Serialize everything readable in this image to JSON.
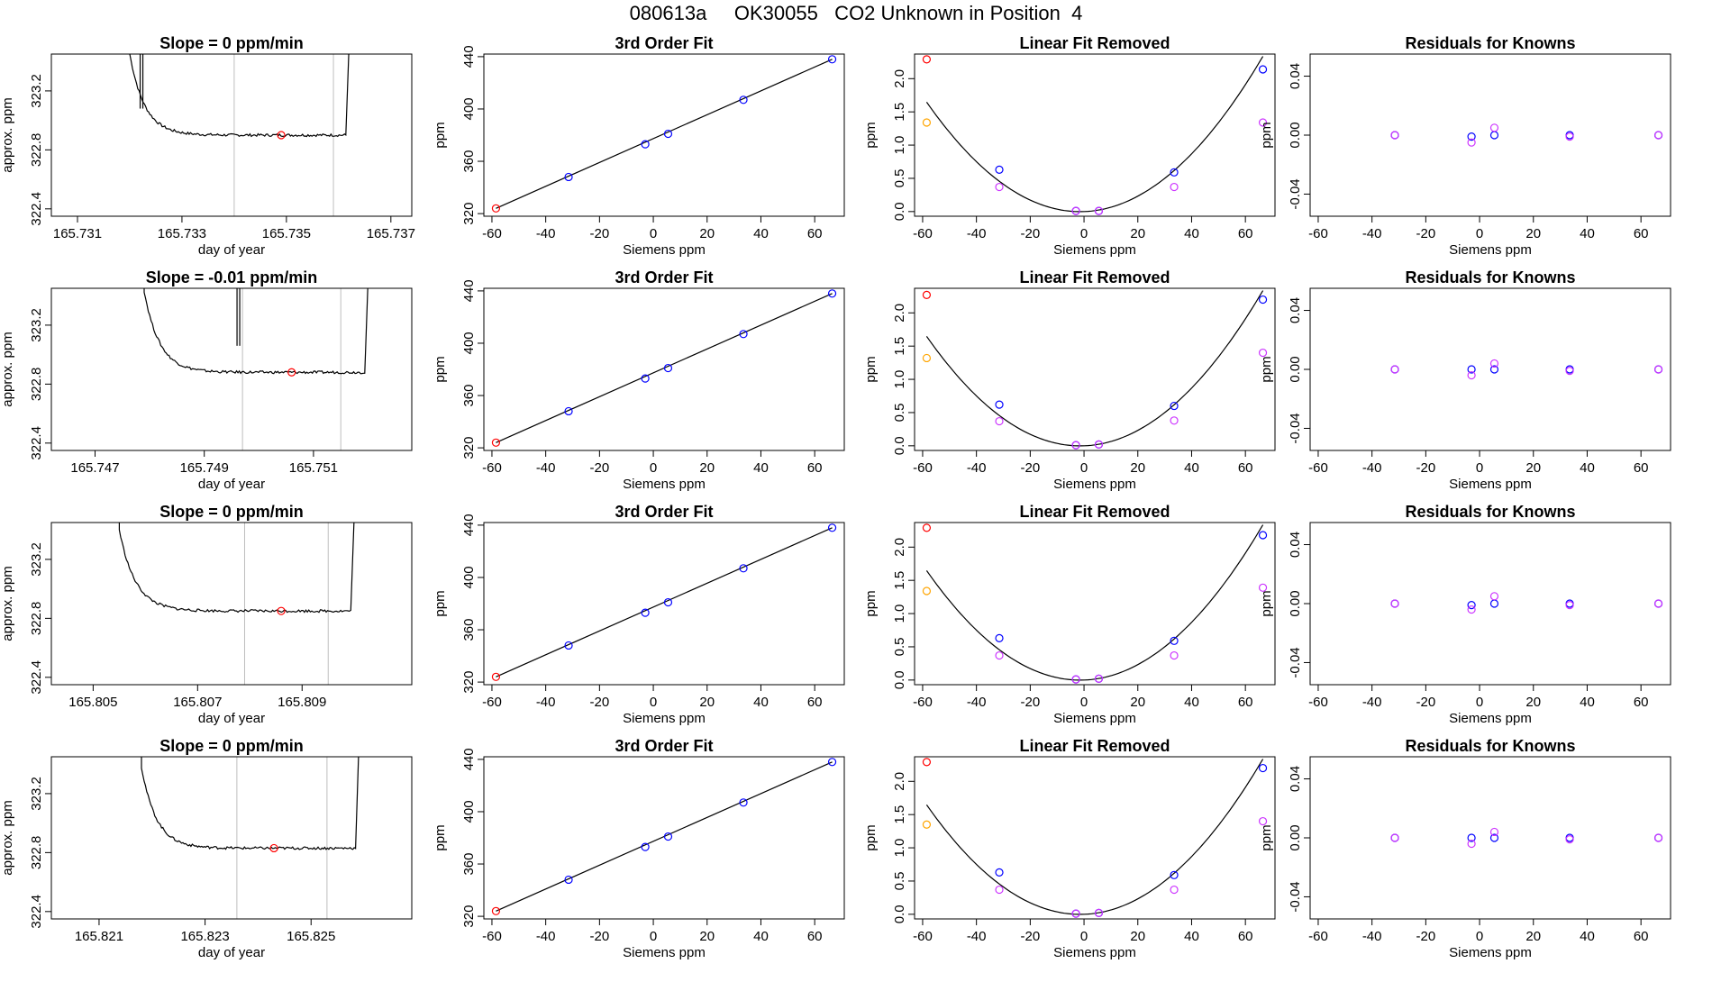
{
  "title": "080613a     OK30055   CO2 Unknown in Position  4",
  "colors": {
    "line": "#000000",
    "marker_red": "#ff0000",
    "marker_blue": "#0000ff",
    "marker_orange": "#ffa500",
    "marker_violet": "#cc33ff",
    "guide_line": "#bebebe"
  },
  "chart_data": [
    {
      "type": "line",
      "row": 0,
      "col": 0,
      "title": "Slope =  0  ppm/min",
      "xlabel": "day of year",
      "ylabel": "approx. ppm",
      "xlim": [
        165.7305,
        165.7374
      ],
      "ylim": [
        322.35,
        323.45
      ],
      "xticks": [
        165.731,
        165.733,
        165.735,
        165.737
      ],
      "yticks": [
        322.4,
        322.8,
        323.2
      ],
      "x_start": 165.732,
      "x_end": 165.7362,
      "spike_x": 165.7322,
      "plateau": 322.9,
      "vlines": [
        165.734,
        165.7359
      ],
      "marker": {
        "x": 165.7349,
        "y": 322.9
      }
    },
    {
      "type": "line",
      "row": 1,
      "col": 0,
      "title": "Slope =  -0.01  ppm/min",
      "xlabel": "day of year",
      "ylabel": "approx. ppm",
      "xlim": [
        165.7462,
        165.7528
      ],
      "ylim": [
        322.35,
        323.45
      ],
      "xticks": [
        165.747,
        165.749,
        165.751
      ],
      "yticks": [
        322.4,
        322.8,
        323.2
      ],
      "x_start": 165.7479,
      "x_end": 165.752,
      "spike_x": 165.7496,
      "plateau": 322.88,
      "vlines": [
        165.7497,
        165.7515
      ],
      "marker": {
        "x": 165.7506,
        "y": 322.88
      }
    },
    {
      "type": "line",
      "row": 2,
      "col": 0,
      "title": "Slope =  0  ppm/min",
      "xlabel": "day of year",
      "ylabel": "approx. ppm",
      "xlim": [
        165.8042,
        165.8111
      ],
      "ylim": [
        322.35,
        323.45
      ],
      "xticks": [
        165.805,
        165.807,
        165.809
      ],
      "yticks": [
        322.4,
        322.8,
        323.2
      ],
      "x_start": 165.8055,
      "x_end": 165.81,
      "plateau": 322.85,
      "vlines": [
        165.8079,
        165.8095
      ],
      "marker": {
        "x": 165.8086,
        "y": 322.85
      }
    },
    {
      "type": "line",
      "row": 3,
      "col": 0,
      "title": "Slope =  0  ppm/min",
      "xlabel": "day of year",
      "ylabel": "approx. ppm",
      "xlim": [
        165.8201,
        165.8269
      ],
      "ylim": [
        322.35,
        323.45
      ],
      "xticks": [
        165.821,
        165.823,
        165.825
      ],
      "yticks": [
        322.4,
        322.8,
        323.2
      ],
      "x_start": 165.8218,
      "x_end": 165.8259,
      "plateau": 322.83,
      "vlines": [
        165.8236,
        165.8253
      ],
      "marker": {
        "x": 165.8243,
        "y": 322.83
      }
    },
    {
      "type": "scatter",
      "row": 0,
      "col": 1,
      "title": "3rd Order Fit",
      "xlabel": "Siemens ppm",
      "ylabel": "ppm",
      "xlim": [
        -63,
        71
      ],
      "ylim": [
        318,
        442
      ],
      "xticks": [
        -60,
        -40,
        -20,
        0,
        20,
        40,
        60
      ],
      "yticks": [
        320,
        360,
        400,
        440
      ],
      "fit_line": [
        [
          -58.5,
          324
        ],
        [
          66.5,
          438
        ]
      ],
      "points": [
        {
          "x": -58.5,
          "y": 324,
          "color": "red"
        },
        {
          "x": -31.5,
          "y": 348,
          "color": "blue"
        },
        {
          "x": -3,
          "y": 373,
          "color": "blue"
        },
        {
          "x": 5.5,
          "y": 381,
          "color": "blue"
        },
        {
          "x": 33.5,
          "y": 407,
          "color": "blue"
        },
        {
          "x": 66.5,
          "y": 438,
          "color": "blue"
        }
      ]
    },
    {
      "type": "scatter",
      "row": 1,
      "col": 1,
      "title": "3rd Order Fit",
      "xlabel": "Siemens ppm",
      "ylabel": "ppm",
      "xlim": [
        -63,
        71
      ],
      "ylim": [
        318,
        442
      ],
      "xticks": [
        -60,
        -40,
        -20,
        0,
        20,
        40,
        60
      ],
      "yticks": [
        320,
        360,
        400,
        440
      ],
      "fit_line": [
        [
          -58.5,
          324
        ],
        [
          66.5,
          438
        ]
      ],
      "points": [
        {
          "x": -58.5,
          "y": 324,
          "color": "red"
        },
        {
          "x": -31.5,
          "y": 348,
          "color": "blue"
        },
        {
          "x": -3,
          "y": 373,
          "color": "blue"
        },
        {
          "x": 5.5,
          "y": 381,
          "color": "blue"
        },
        {
          "x": 33.5,
          "y": 407,
          "color": "blue"
        },
        {
          "x": 66.5,
          "y": 438,
          "color": "blue"
        }
      ]
    },
    {
      "type": "scatter",
      "row": 2,
      "col": 1,
      "title": "3rd Order Fit",
      "xlabel": "Siemens ppm",
      "ylabel": "ppm",
      "xlim": [
        -63,
        71
      ],
      "ylim": [
        318,
        442
      ],
      "xticks": [
        -60,
        -40,
        -20,
        0,
        20,
        40,
        60
      ],
      "yticks": [
        320,
        360,
        400,
        440
      ],
      "fit_line": [
        [
          -58.5,
          324
        ],
        [
          66.5,
          438
        ]
      ],
      "points": [
        {
          "x": -58.5,
          "y": 324,
          "color": "red"
        },
        {
          "x": -31.5,
          "y": 348,
          "color": "blue"
        },
        {
          "x": -3,
          "y": 373,
          "color": "blue"
        },
        {
          "x": 5.5,
          "y": 381,
          "color": "blue"
        },
        {
          "x": 33.5,
          "y": 407,
          "color": "blue"
        },
        {
          "x": 66.5,
          "y": 438,
          "color": "blue"
        }
      ]
    },
    {
      "type": "scatter",
      "row": 3,
      "col": 1,
      "title": "3rd Order Fit",
      "xlabel": "Siemens ppm",
      "ylabel": "ppm",
      "xlim": [
        -63,
        71
      ],
      "ylim": [
        318,
        442
      ],
      "xticks": [
        -60,
        -40,
        -20,
        0,
        20,
        40,
        60
      ],
      "yticks": [
        320,
        360,
        400,
        440
      ],
      "fit_line": [
        [
          -58.5,
          324
        ],
        [
          66.5,
          438
        ]
      ],
      "points": [
        {
          "x": -58.5,
          "y": 324,
          "color": "red"
        },
        {
          "x": -31.5,
          "y": 348,
          "color": "blue"
        },
        {
          "x": -3,
          "y": 373,
          "color": "blue"
        },
        {
          "x": 5.5,
          "y": 381,
          "color": "blue"
        },
        {
          "x": 33.5,
          "y": 407,
          "color": "blue"
        },
        {
          "x": 66.5,
          "y": 438,
          "color": "blue"
        }
      ]
    },
    {
      "type": "scatter",
      "row": 0,
      "col": 2,
      "title": "Linear Fit Removed",
      "xlabel": "Siemens ppm",
      "ylabel": "ppm",
      "xlim": [
        -63,
        71
      ],
      "ylim": [
        -0.07,
        2.37
      ],
      "xticks": [
        -60,
        -40,
        -20,
        0,
        20,
        40,
        60
      ],
      "yticks": [
        0.0,
        0.5,
        1.0,
        1.5,
        2.0
      ],
      "curve": {
        "x_min": -58.5,
        "x_max": 66.5,
        "a": 0.000506,
        "b": 0.00147,
        "c": 0.0
      },
      "points": [
        {
          "x": -58.5,
          "y": 2.29,
          "color": "red"
        },
        {
          "x": -58.5,
          "y": 1.34,
          "color": "orange"
        },
        {
          "x": -31.5,
          "y": 0.63,
          "color": "blue"
        },
        {
          "x": -31.5,
          "y": 0.37,
          "color": "violet"
        },
        {
          "x": -3,
          "y": 0.01,
          "color": "blue"
        },
        {
          "x": -3,
          "y": 0.01,
          "color": "violet"
        },
        {
          "x": 5.5,
          "y": 0.01,
          "color": "blue"
        },
        {
          "x": 5.5,
          "y": 0.01,
          "color": "violet"
        },
        {
          "x": 33.5,
          "y": 0.59,
          "color": "blue"
        },
        {
          "x": 33.5,
          "y": 0.37,
          "color": "violet"
        },
        {
          "x": 66.5,
          "y": 2.14,
          "color": "blue"
        },
        {
          "x": 66.5,
          "y": 1.34,
          "color": "violet"
        }
      ]
    },
    {
      "type": "scatter",
      "row": 1,
      "col": 2,
      "title": "Linear Fit Removed",
      "xlabel": "Siemens ppm",
      "ylabel": "ppm",
      "xlim": [
        -63,
        71
      ],
      "ylim": [
        -0.07,
        2.37
      ],
      "xticks": [
        -60,
        -40,
        -20,
        0,
        20,
        40,
        60
      ],
      "yticks": [
        0.0,
        0.5,
        1.0,
        1.5,
        2.0
      ],
      "curve": {
        "x_min": -58.5,
        "x_max": 66.5,
        "a": 0.000506,
        "b": 0.00147,
        "c": 0.0
      },
      "points": [
        {
          "x": -58.5,
          "y": 2.27,
          "color": "red"
        },
        {
          "x": -58.5,
          "y": 1.32,
          "color": "orange"
        },
        {
          "x": -31.5,
          "y": 0.62,
          "color": "blue"
        },
        {
          "x": -31.5,
          "y": 0.37,
          "color": "violet"
        },
        {
          "x": -3,
          "y": 0.01,
          "color": "blue"
        },
        {
          "x": -3,
          "y": 0.01,
          "color": "violet"
        },
        {
          "x": 5.5,
          "y": 0.02,
          "color": "blue"
        },
        {
          "x": 5.5,
          "y": 0.02,
          "color": "violet"
        },
        {
          "x": 33.5,
          "y": 0.6,
          "color": "blue"
        },
        {
          "x": 33.5,
          "y": 0.38,
          "color": "violet"
        },
        {
          "x": 66.5,
          "y": 2.2,
          "color": "blue"
        },
        {
          "x": 66.5,
          "y": 1.4,
          "color": "violet"
        }
      ]
    },
    {
      "type": "scatter",
      "row": 2,
      "col": 2,
      "title": "Linear Fit Removed",
      "xlabel": "Siemens ppm",
      "ylabel": "ppm",
      "xlim": [
        -63,
        71
      ],
      "ylim": [
        -0.07,
        2.37
      ],
      "xticks": [
        -60,
        -40,
        -20,
        0,
        20,
        40,
        60
      ],
      "yticks": [
        0.0,
        0.5,
        1.0,
        1.5,
        2.0
      ],
      "curve": {
        "x_min": -58.5,
        "x_max": 66.5,
        "a": 0.000506,
        "b": 0.00147,
        "c": 0.0
      },
      "points": [
        {
          "x": -58.5,
          "y": 2.29,
          "color": "red"
        },
        {
          "x": -58.5,
          "y": 1.34,
          "color": "orange"
        },
        {
          "x": -31.5,
          "y": 0.63,
          "color": "blue"
        },
        {
          "x": -31.5,
          "y": 0.37,
          "color": "violet"
        },
        {
          "x": -3,
          "y": 0.01,
          "color": "blue"
        },
        {
          "x": -3,
          "y": 0.01,
          "color": "violet"
        },
        {
          "x": 5.5,
          "y": 0.02,
          "color": "blue"
        },
        {
          "x": 5.5,
          "y": 0.02,
          "color": "violet"
        },
        {
          "x": 33.5,
          "y": 0.59,
          "color": "blue"
        },
        {
          "x": 33.5,
          "y": 0.37,
          "color": "violet"
        },
        {
          "x": 66.5,
          "y": 2.18,
          "color": "blue"
        },
        {
          "x": 66.5,
          "y": 1.39,
          "color": "violet"
        }
      ]
    },
    {
      "type": "scatter",
      "row": 3,
      "col": 2,
      "title": "Linear Fit Removed",
      "xlabel": "Siemens ppm",
      "ylabel": "ppm",
      "xlim": [
        -63,
        71
      ],
      "ylim": [
        -0.07,
        2.37
      ],
      "xticks": [
        -60,
        -40,
        -20,
        0,
        20,
        40,
        60
      ],
      "yticks": [
        0.0,
        0.5,
        1.0,
        1.5,
        2.0
      ],
      "curve": {
        "x_min": -58.5,
        "x_max": 66.5,
        "a": 0.000506,
        "b": 0.00147,
        "c": 0.0
      },
      "points": [
        {
          "x": -58.5,
          "y": 2.29,
          "color": "red"
        },
        {
          "x": -58.5,
          "y": 1.35,
          "color": "orange"
        },
        {
          "x": -31.5,
          "y": 0.63,
          "color": "blue"
        },
        {
          "x": -31.5,
          "y": 0.37,
          "color": "violet"
        },
        {
          "x": -3,
          "y": 0.01,
          "color": "blue"
        },
        {
          "x": -3,
          "y": 0.01,
          "color": "violet"
        },
        {
          "x": 5.5,
          "y": 0.02,
          "color": "blue"
        },
        {
          "x": 5.5,
          "y": 0.02,
          "color": "violet"
        },
        {
          "x": 33.5,
          "y": 0.59,
          "color": "blue"
        },
        {
          "x": 33.5,
          "y": 0.37,
          "color": "violet"
        },
        {
          "x": 66.5,
          "y": 2.2,
          "color": "blue"
        },
        {
          "x": 66.5,
          "y": 1.4,
          "color": "violet"
        }
      ]
    },
    {
      "type": "scatter",
      "row": 0,
      "col": 3,
      "title": "Residuals for Knowns",
      "xlabel": "Siemens ppm",
      "ylabel": "ppm",
      "xlim": [
        -63,
        71
      ],
      "ylim": [
        -0.055,
        0.055
      ],
      "xticks": [
        -60,
        -40,
        -20,
        0,
        20,
        40,
        60
      ],
      "yticks": [
        -0.04,
        0.0,
        0.04
      ],
      "points": [
        {
          "x": -31.5,
          "y": 0.0,
          "color": "blue"
        },
        {
          "x": -31.5,
          "y": 0.0,
          "color": "violet"
        },
        {
          "x": -3,
          "y": -0.001,
          "color": "blue"
        },
        {
          "x": -3,
          "y": -0.005,
          "color": "violet"
        },
        {
          "x": 5.5,
          "y": 0.0,
          "color": "blue"
        },
        {
          "x": 5.5,
          "y": 0.005,
          "color": "violet"
        },
        {
          "x": 33.5,
          "y": 0.0,
          "color": "blue"
        },
        {
          "x": 33.5,
          "y": -0.001,
          "color": "violet"
        },
        {
          "x": 66.5,
          "y": 0.0,
          "color": "blue"
        },
        {
          "x": 66.5,
          "y": 0.0,
          "color": "violet"
        }
      ]
    },
    {
      "type": "scatter",
      "row": 1,
      "col": 3,
      "title": "Residuals for Knowns",
      "xlabel": "Siemens ppm",
      "ylabel": "ppm",
      "xlim": [
        -63,
        71
      ],
      "ylim": [
        -0.055,
        0.055
      ],
      "xticks": [
        -60,
        -40,
        -20,
        0,
        20,
        40,
        60
      ],
      "yticks": [
        -0.04,
        0.0,
        0.04
      ],
      "points": [
        {
          "x": -31.5,
          "y": 0.0,
          "color": "blue"
        },
        {
          "x": -31.5,
          "y": 0.0,
          "color": "violet"
        },
        {
          "x": -3,
          "y": 0.0,
          "color": "blue"
        },
        {
          "x": -3,
          "y": -0.004,
          "color": "violet"
        },
        {
          "x": 5.5,
          "y": 0.0,
          "color": "blue"
        },
        {
          "x": 5.5,
          "y": 0.004,
          "color": "violet"
        },
        {
          "x": 33.5,
          "y": 0.0,
          "color": "blue"
        },
        {
          "x": 33.5,
          "y": -0.001,
          "color": "violet"
        },
        {
          "x": 66.5,
          "y": 0.0,
          "color": "blue"
        },
        {
          "x": 66.5,
          "y": 0.0,
          "color": "violet"
        }
      ]
    },
    {
      "type": "scatter",
      "row": 2,
      "col": 3,
      "title": "Residuals for Knowns",
      "xlabel": "Siemens ppm",
      "ylabel": "ppm",
      "xlim": [
        -63,
        71
      ],
      "ylim": [
        -0.055,
        0.055
      ],
      "xticks": [
        -60,
        -40,
        -20,
        0,
        20,
        40,
        60
      ],
      "yticks": [
        -0.04,
        0.0,
        0.04
      ],
      "points": [
        {
          "x": -31.5,
          "y": 0.0,
          "color": "blue"
        },
        {
          "x": -31.5,
          "y": 0.0,
          "color": "violet"
        },
        {
          "x": -3,
          "y": -0.001,
          "color": "blue"
        },
        {
          "x": -3,
          "y": -0.004,
          "color": "violet"
        },
        {
          "x": 5.5,
          "y": 0.0,
          "color": "blue"
        },
        {
          "x": 5.5,
          "y": 0.005,
          "color": "violet"
        },
        {
          "x": 33.5,
          "y": 0.0,
          "color": "blue"
        },
        {
          "x": 33.5,
          "y": -0.001,
          "color": "violet"
        },
        {
          "x": 66.5,
          "y": 0.0,
          "color": "blue"
        },
        {
          "x": 66.5,
          "y": 0.0,
          "color": "violet"
        }
      ]
    },
    {
      "type": "scatter",
      "row": 3,
      "col": 3,
      "title": "Residuals for Knowns",
      "xlabel": "Siemens ppm",
      "ylabel": "ppm",
      "xlim": [
        -63,
        71
      ],
      "ylim": [
        -0.055,
        0.055
      ],
      "xticks": [
        -60,
        -40,
        -20,
        0,
        20,
        40,
        60
      ],
      "yticks": [
        -0.04,
        0.0,
        0.04
      ],
      "points": [
        {
          "x": -31.5,
          "y": 0.0,
          "color": "blue"
        },
        {
          "x": -31.5,
          "y": 0.0,
          "color": "violet"
        },
        {
          "x": -3,
          "y": 0.0,
          "color": "blue"
        },
        {
          "x": -3,
          "y": -0.004,
          "color": "violet"
        },
        {
          "x": 5.5,
          "y": 0.0,
          "color": "blue"
        },
        {
          "x": 5.5,
          "y": 0.004,
          "color": "violet"
        },
        {
          "x": 33.5,
          "y": 0.0,
          "color": "blue"
        },
        {
          "x": 33.5,
          "y": -0.001,
          "color": "violet"
        },
        {
          "x": 66.5,
          "y": 0.0,
          "color": "blue"
        },
        {
          "x": 66.5,
          "y": 0.0,
          "color": "violet"
        }
      ]
    }
  ]
}
